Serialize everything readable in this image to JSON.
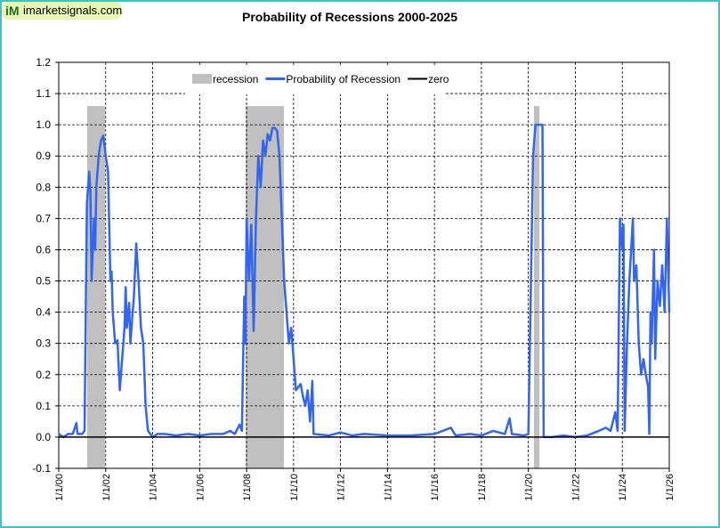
{
  "logo": {
    "mark": "iM",
    "site": "imarketsignals.com"
  },
  "chart_data": {
    "type": "line",
    "title": "Probability  of Recessions  2000-2025",
    "xlim": [
      2000,
      2026
    ],
    "xticks": [
      {
        "value": 2000,
        "label": "1/1/00"
      },
      {
        "value": 2002,
        "label": "1/1/02"
      },
      {
        "value": 2004,
        "label": "1/1/04"
      },
      {
        "value": 2006,
        "label": "1/1/06"
      },
      {
        "value": 2008,
        "label": "1/1/08"
      },
      {
        "value": 2010,
        "label": "1/1/10"
      },
      {
        "value": 2012,
        "label": "1/1/12"
      },
      {
        "value": 2014,
        "label": "1/1/14"
      },
      {
        "value": 2016,
        "label": "1/1/16"
      },
      {
        "value": 2018,
        "label": "1/1/18"
      },
      {
        "value": 2020,
        "label": "1/1/20"
      },
      {
        "value": 2022,
        "label": "1/1/22"
      },
      {
        "value": 2024,
        "label": "1/1/24"
      },
      {
        "value": 2026,
        "label": "1/1/26"
      }
    ],
    "ylim": [
      -0.1,
      1.2
    ],
    "yticks": [
      -0.1,
      {
        "value": 0,
        "label": "0.0"
      },
      0.1,
      0.2,
      0.3,
      0.4,
      0.5,
      0.6,
      0.7,
      0.8,
      0.9,
      {
        "value": 1,
        "label": "1.0"
      },
      1.1,
      1.2
    ],
    "grid": true,
    "legend": "top",
    "series": [
      {
        "name": "recession",
        "color": "#c0c0c0",
        "top": 1.06,
        "spans": [
          [
            2001.21,
            2001.97
          ],
          [
            2007.96,
            2009.59
          ],
          [
            2020.24,
            2020.47
          ]
        ]
      },
      {
        "name": "Probability of Recession",
        "color": "#3366ee",
        "x": [
          2000.0,
          2000.2,
          2000.4,
          2000.6,
          2000.75,
          2000.8,
          2001.0,
          2001.1,
          2001.15,
          2001.2,
          2001.3,
          2001.35,
          2001.4,
          2001.5,
          2001.55,
          2001.6,
          2001.7,
          2001.8,
          2001.9,
          2002.0,
          2002.1,
          2002.2,
          2002.25,
          2002.3,
          2002.4,
          2002.5,
          2002.6,
          2002.65,
          2002.8,
          2002.85,
          2002.9,
          2003.0,
          2003.05,
          2003.2,
          2003.3,
          2003.4,
          2003.5,
          2003.6,
          2003.7,
          2003.8,
          2004.0,
          2004.2,
          2004.5,
          2005.0,
          2005.5,
          2006.0,
          2006.5,
          2007.0,
          2007.3,
          2007.5,
          2007.7,
          2007.8,
          2007.9,
          2007.95,
          2008.0,
          2008.1,
          2008.2,
          2008.3,
          2008.4,
          2008.5,
          2008.6,
          2008.7,
          2008.8,
          2008.9,
          2009.0,
          2009.1,
          2009.2,
          2009.3,
          2009.4,
          2009.5,
          2009.6,
          2009.7,
          2009.8,
          2009.9,
          2010.0,
          2010.1,
          2010.3,
          2010.4,
          2010.5,
          2010.6,
          2010.7,
          2010.8,
          2010.85,
          2011.5,
          2012.0,
          2012.5,
          2013.0,
          2014.0,
          2015.0,
          2016.0,
          2016.7,
          2016.9,
          2017.5,
          2018.0,
          2018.5,
          2019.0,
          2019.2,
          2019.3,
          2019.8,
          2020.0,
          2020.2,
          2020.3,
          2020.6,
          2020.65,
          2021.0,
          2021.5,
          2022.0,
          2022.5,
          2023.0,
          2023.3,
          2023.5,
          2023.7,
          2023.8,
          2023.9,
          2024.0,
          2024.05,
          2024.1,
          2024.2,
          2024.3,
          2024.45,
          2024.5,
          2024.6,
          2024.7,
          2024.8,
          2024.9,
          2025.0,
          2025.1,
          2025.15,
          2025.2,
          2025.25,
          2025.35,
          2025.4,
          2025.5,
          2025.6,
          2025.7,
          2025.8,
          2025.9,
          2026.0
        ],
        "values": [
          0.01,
          0.0,
          0.01,
          0.01,
          0.045,
          0.01,
          0.01,
          0.02,
          0.4,
          0.75,
          0.85,
          0.78,
          0.5,
          0.7,
          0.6,
          0.8,
          0.9,
          0.95,
          0.965,
          0.9,
          0.85,
          0.5,
          0.53,
          0.4,
          0.3,
          0.31,
          0.15,
          0.2,
          0.35,
          0.48,
          0.35,
          0.43,
          0.3,
          0.45,
          0.62,
          0.5,
          0.35,
          0.3,
          0.1,
          0.02,
          0.0,
          0.01,
          0.01,
          0.005,
          0.01,
          0.005,
          0.01,
          0.01,
          0.02,
          0.01,
          0.04,
          0.02,
          0.45,
          0.3,
          0.7,
          0.5,
          0.68,
          0.34,
          0.7,
          0.9,
          0.8,
          0.95,
          0.9,
          0.97,
          0.95,
          0.99,
          0.99,
          0.98,
          0.9,
          0.7,
          0.5,
          0.4,
          0.3,
          0.35,
          0.25,
          0.15,
          0.17,
          0.13,
          0.1,
          0.15,
          0.05,
          0.18,
          0.01,
          0.005,
          0.015,
          0.005,
          0.01,
          0.005,
          0.005,
          0.01,
          0.03,
          0.005,
          0.01,
          0.005,
          0.02,
          0.01,
          0.06,
          0.01,
          0.005,
          0.01,
          0.9,
          1.0,
          1.0,
          0.0,
          0.0,
          0.005,
          0.0,
          0.005,
          0.02,
          0.03,
          0.02,
          0.08,
          0.02,
          0.7,
          0.6,
          0.68,
          0.02,
          0.3,
          0.5,
          0.7,
          0.5,
          0.55,
          0.3,
          0.2,
          0.25,
          0.2,
          0.16,
          0.01,
          0.4,
          0.3,
          0.6,
          0.25,
          0.5,
          0.42,
          0.55,
          0.4,
          0.7,
          0.4
        ]
      },
      {
        "name": "zero",
        "color": "#000000",
        "x": [
          2000,
          2026
        ],
        "values": [
          0,
          0
        ]
      }
    ]
  }
}
